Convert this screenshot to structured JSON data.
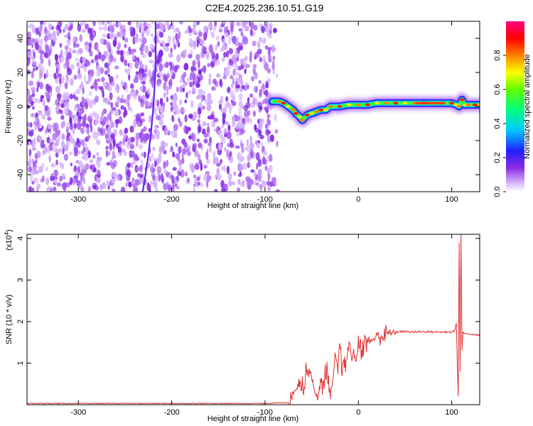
{
  "figure": {
    "title": "C2E4.2025.236.10.51.G19"
  },
  "chart_data": [
    {
      "type": "heatmap",
      "xlabel": "Height of straight line (km)",
      "ylabel": "Frequency (Hz)",
      "xlim": [
        -355,
        130
      ],
      "ylim": [
        -50,
        50
      ],
      "xticks": [
        -300,
        -200,
        -100,
        0,
        100
      ],
      "yticks": [
        -40,
        -20,
        0,
        20,
        40
      ],
      "colorbar": {
        "label": "Normalized spectral amplitude",
        "range": [
          0,
          1
        ],
        "ticks": [
          0.0,
          0.2,
          0.4,
          0.6,
          0.8
        ]
      },
      "noise_region": {
        "x_range": [
          -355,
          -90
        ],
        "y_range": [
          -50,
          50
        ],
        "amplitude": 0.12
      },
      "vertical_streak": {
        "x_top": -225,
        "x_bottom": -225,
        "x_mid": -215,
        "amplitude": 0.18
      },
      "ridge_center": [
        [
          -92,
          3
        ],
        [
          -85,
          3
        ],
        [
          -80,
          2
        ],
        [
          -75,
          0
        ],
        [
          -70,
          -2
        ],
        [
          -67,
          -4
        ],
        [
          -63,
          -6
        ],
        [
          -60,
          -8
        ],
        [
          -55,
          -5
        ],
        [
          -50,
          -4
        ],
        [
          -45,
          -3
        ],
        [
          -40,
          -2
        ],
        [
          -35,
          -2
        ],
        [
          -30,
          0
        ],
        [
          -20,
          0
        ],
        [
          -10,
          1
        ],
        [
          0,
          1
        ],
        [
          10,
          1
        ],
        [
          20,
          2
        ],
        [
          30,
          2
        ],
        [
          40,
          2
        ],
        [
          50,
          2
        ],
        [
          60,
          2
        ],
        [
          70,
          2
        ],
        [
          80,
          2
        ],
        [
          90,
          2
        ],
        [
          100,
          2
        ],
        [
          105,
          1
        ],
        [
          108,
          0
        ],
        [
          111,
          4
        ],
        [
          114,
          1
        ],
        [
          118,
          1
        ],
        [
          125,
          1
        ],
        [
          130,
          1
        ]
      ]
    },
    {
      "type": "line",
      "xlabel": "Height of straight line (km)",
      "ylabel": "SNR (10 * v/v)",
      "y_multiplier_label": "(x10",
      "y_multiplier_exp": "4",
      "y_multiplier_close": ")",
      "xlim": [
        -355,
        130
      ],
      "ylim": [
        0,
        4.1
      ],
      "xticks": [
        -300,
        -200,
        -100,
        0,
        100
      ],
      "yticks": [
        1,
        2,
        3,
        4
      ],
      "series": [
        {
          "color": "#e03030",
          "x": [
            -355,
            -300,
            -250,
            -200,
            -150,
            -100,
            -90,
            -75,
            -68,
            -62,
            -58,
            -55,
            -50,
            -47,
            -43,
            -40,
            -38,
            -35,
            -32,
            -30,
            -27,
            -25,
            -22,
            -20,
            -18,
            -15,
            -12,
            -10,
            -7,
            -5,
            -3,
            0,
            3,
            6,
            10,
            14,
            18,
            22,
            26,
            30,
            35,
            40,
            50,
            60,
            70,
            80,
            90,
            100,
            103,
            105,
            106,
            107,
            108,
            109,
            110,
            111,
            112,
            115,
            120,
            125,
            130
          ],
          "y": [
            0.03,
            0.03,
            0.03,
            0.03,
            0.03,
            0.03,
            0.04,
            0.05,
            0.35,
            0.6,
            0.4,
            0.95,
            0.7,
            0.3,
            0.2,
            0.5,
            0.4,
            0.9,
            0.6,
            0.2,
            0.6,
            1.2,
            0.8,
            1.45,
            1.0,
            0.8,
            1.2,
            1.5,
            1.1,
            1.3,
            1.0,
            1.5,
            1.35,
            1.45,
            1.5,
            1.55,
            1.6,
            1.68,
            1.66,
            1.7,
            1.73,
            1.75,
            1.76,
            1.75,
            1.76,
            1.75,
            1.75,
            1.75,
            1.78,
            1.95,
            1.0,
            0.2,
            3.9,
            0.8,
            4.1,
            1.3,
            1.75,
            1.7,
            1.7,
            1.68,
            1.67
          ]
        }
      ]
    }
  ]
}
